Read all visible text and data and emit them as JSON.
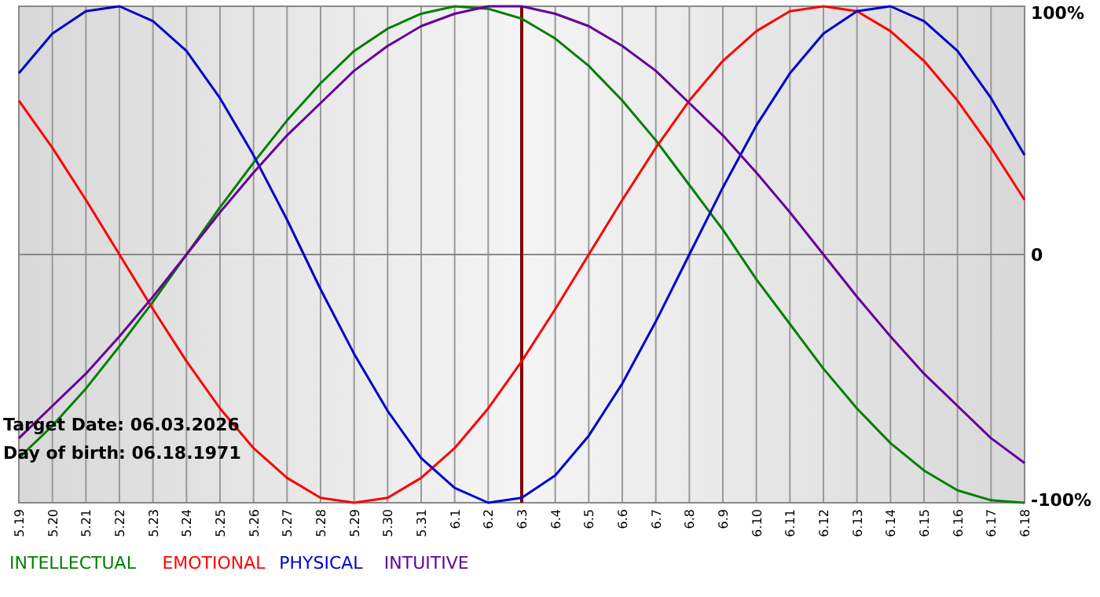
{
  "chart_data": {
    "type": "line",
    "categories": [
      "5.19",
      "5.20",
      "5.21",
      "5.22",
      "5.23",
      "5.24",
      "5.25",
      "5.26",
      "5.27",
      "5.28",
      "5.29",
      "5.30",
      "5.31",
      "6.1",
      "6.2",
      "6.3",
      "6.4",
      "6.5",
      "6.6",
      "6.7",
      "6.8",
      "6.9",
      "6.10",
      "6.11",
      "6.12",
      "6.13",
      "6.14",
      "6.15",
      "6.16",
      "6.17",
      "6.18"
    ],
    "series": [
      {
        "name": "INTELLECTUAL",
        "color": "#008000",
        "values": [
          -82,
          -69,
          -54,
          -37,
          -19,
          0,
          19,
          37,
          54,
          69,
          82,
          91,
          97,
          100,
          99,
          95,
          87,
          76,
          62,
          46,
          28,
          10,
          -10,
          -28,
          -46,
          -62,
          -76,
          -87,
          -95,
          -99,
          -100
        ]
      },
      {
        "name": "EMOTIONAL",
        "color": "#ff0000",
        "values": [
          62,
          43,
          22,
          0,
          -22,
          -43,
          -62,
          -78,
          -90,
          -98,
          -100,
          -98,
          -90,
          -78,
          -62,
          -43,
          -22,
          0,
          22,
          43,
          62,
          78,
          90,
          98,
          100,
          98,
          90,
          78,
          62,
          43,
          22
        ]
      },
      {
        "name": "PHYSICAL",
        "color": "#0000cc",
        "values": [
          73,
          89,
          98,
          100,
          94,
          82,
          63,
          40,
          14,
          -14,
          -40,
          -63,
          -82,
          -94,
          -100,
          -98,
          -89,
          -73,
          -52,
          -27,
          0,
          27,
          52,
          73,
          89,
          98,
          100,
          94,
          82,
          63,
          40
        ]
      },
      {
        "name": "INTUITIVE",
        "color": "#660099",
        "values": [
          -74,
          -61,
          -48,
          -33,
          -17,
          0,
          17,
          33,
          48,
          61,
          74,
          84,
          92,
          97,
          100,
          100,
          97,
          92,
          84,
          74,
          61,
          48,
          33,
          17,
          0,
          -17,
          -33,
          -48,
          -61,
          -74,
          -84
        ]
      }
    ],
    "ylim": [
      -100,
      100
    ],
    "yticks": [
      {
        "value": -100,
        "label": "-100%"
      },
      0,
      {
        "value": 100,
        "label": "100%"
      }
    ],
    "grid": true,
    "legend": "bottom left",
    "ref_lines": [
      {
        "axis": "x",
        "value": "6.3",
        "color": "#800000"
      }
    ],
    "annotations": [
      "Target Date: 06.03.2026",
      "Day of birth: 06.18.1971"
    ]
  }
}
